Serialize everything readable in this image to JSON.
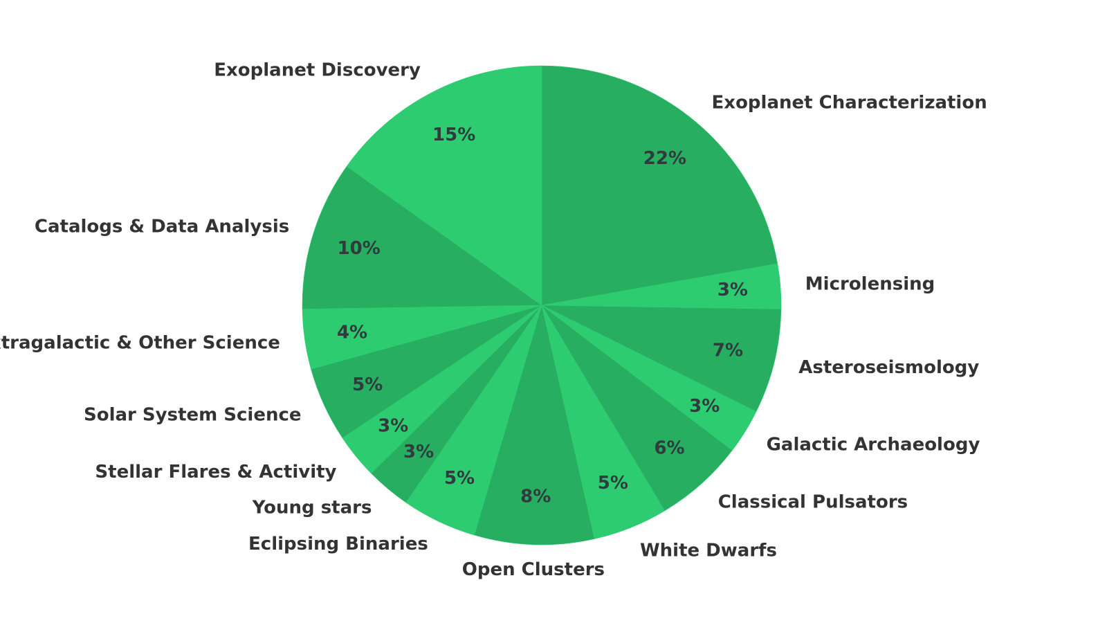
{
  "chart_data": {
    "type": "pie",
    "colors": [
      "#27ae60",
      "#2ecc71"
    ],
    "slices": [
      {
        "label": "Exoplanet Characterization",
        "value": 22,
        "pct_label": "22%"
      },
      {
        "label": "Microlensing",
        "value": 3,
        "pct_label": "3%"
      },
      {
        "label": "Asteroseismology",
        "value": 7,
        "pct_label": "7%"
      },
      {
        "label": "Galactic Archaeology",
        "value": 3,
        "pct_label": "3%"
      },
      {
        "label": "Classical Pulsators",
        "value": 6,
        "pct_label": "6%"
      },
      {
        "label": "White Dwarfs",
        "value": 5,
        "pct_label": "5%"
      },
      {
        "label": "Open Clusters",
        "value": 8,
        "pct_label": "8%"
      },
      {
        "label": "Eclipsing Binaries",
        "value": 5,
        "pct_label": "5%"
      },
      {
        "label": "Young stars",
        "value": 3,
        "pct_label": "3%"
      },
      {
        "label": "Stellar Flares & Activity",
        "value": 3,
        "pct_label": "3%"
      },
      {
        "label": "Solar System Science",
        "value": 5,
        "pct_label": "5%"
      },
      {
        "label": "Extragalactic & Other Science",
        "value": 4,
        "pct_label": "4%"
      },
      {
        "label": "Catalogs & Data Analysis",
        "value": 10,
        "pct_label": "10%"
      },
      {
        "label": "Exoplanet Discovery",
        "value": 15,
        "pct_label": "15%"
      }
    ]
  }
}
